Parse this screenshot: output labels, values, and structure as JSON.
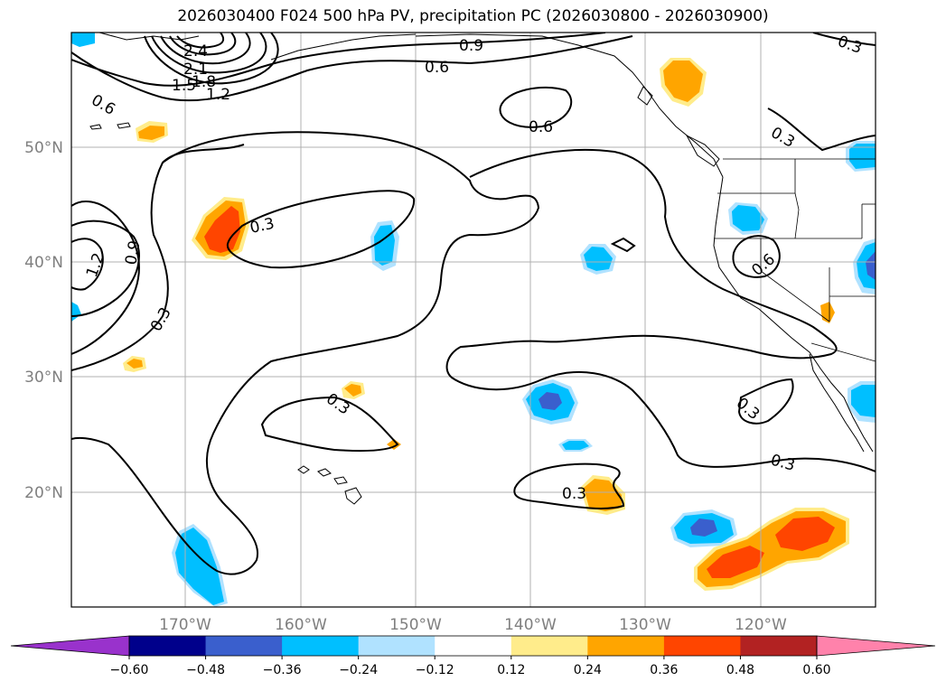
{
  "title": "2026030400 F024 500 hPa PV, precipitation PC (2026030800 - 2026030900)",
  "map": {
    "lat_ticks": [
      {
        "label": "50°N",
        "value": 50
      },
      {
        "label": "40°N",
        "value": 40
      },
      {
        "label": "30°N",
        "value": 30
      },
      {
        "label": "20°N",
        "value": 20
      }
    ],
    "lon_ticks": [
      {
        "label": "170°W",
        "value": -170
      },
      {
        "label": "160°W",
        "value": -160
      },
      {
        "label": "150°W",
        "value": -150
      },
      {
        "label": "140°W",
        "value": -140
      },
      {
        "label": "130°W",
        "value": -130
      },
      {
        "label": "120°W",
        "value": -120
      }
    ],
    "lon_range": [
      -180,
      -110
    ],
    "lat_range": [
      10,
      60
    ],
    "gridlines": true,
    "pv_contour_labels": [
      "2.4",
      "2.1",
      "1.8",
      "1.5",
      "1.2",
      "0.9",
      "0.6",
      "0.6",
      "0.6",
      "0.3",
      "0.3",
      "1.2",
      "0.9",
      "0.3",
      "0.3",
      "0.3",
      "0.3",
      "0.6",
      "0.3",
      "0.3"
    ]
  },
  "colorbar": {
    "colors": [
      "#9932cc",
      "#00008b",
      "#3a5fcd",
      "#00bfff",
      "#b0e2ff",
      "#ffffff",
      "#ffec8b",
      "#ffa500",
      "#ff4500",
      "#b22222",
      "#ff82ab"
    ],
    "tick_labels": [
      "−0.60",
      "−0.48",
      "−0.36",
      "−0.24",
      "−0.12",
      "0.12",
      "0.24",
      "0.36",
      "0.48",
      "0.60"
    ],
    "tick_values": [
      -0.6,
      -0.48,
      -0.36,
      -0.24,
      -0.12,
      0.12,
      0.24,
      0.36,
      0.48,
      0.6
    ],
    "extend": "both"
  }
}
